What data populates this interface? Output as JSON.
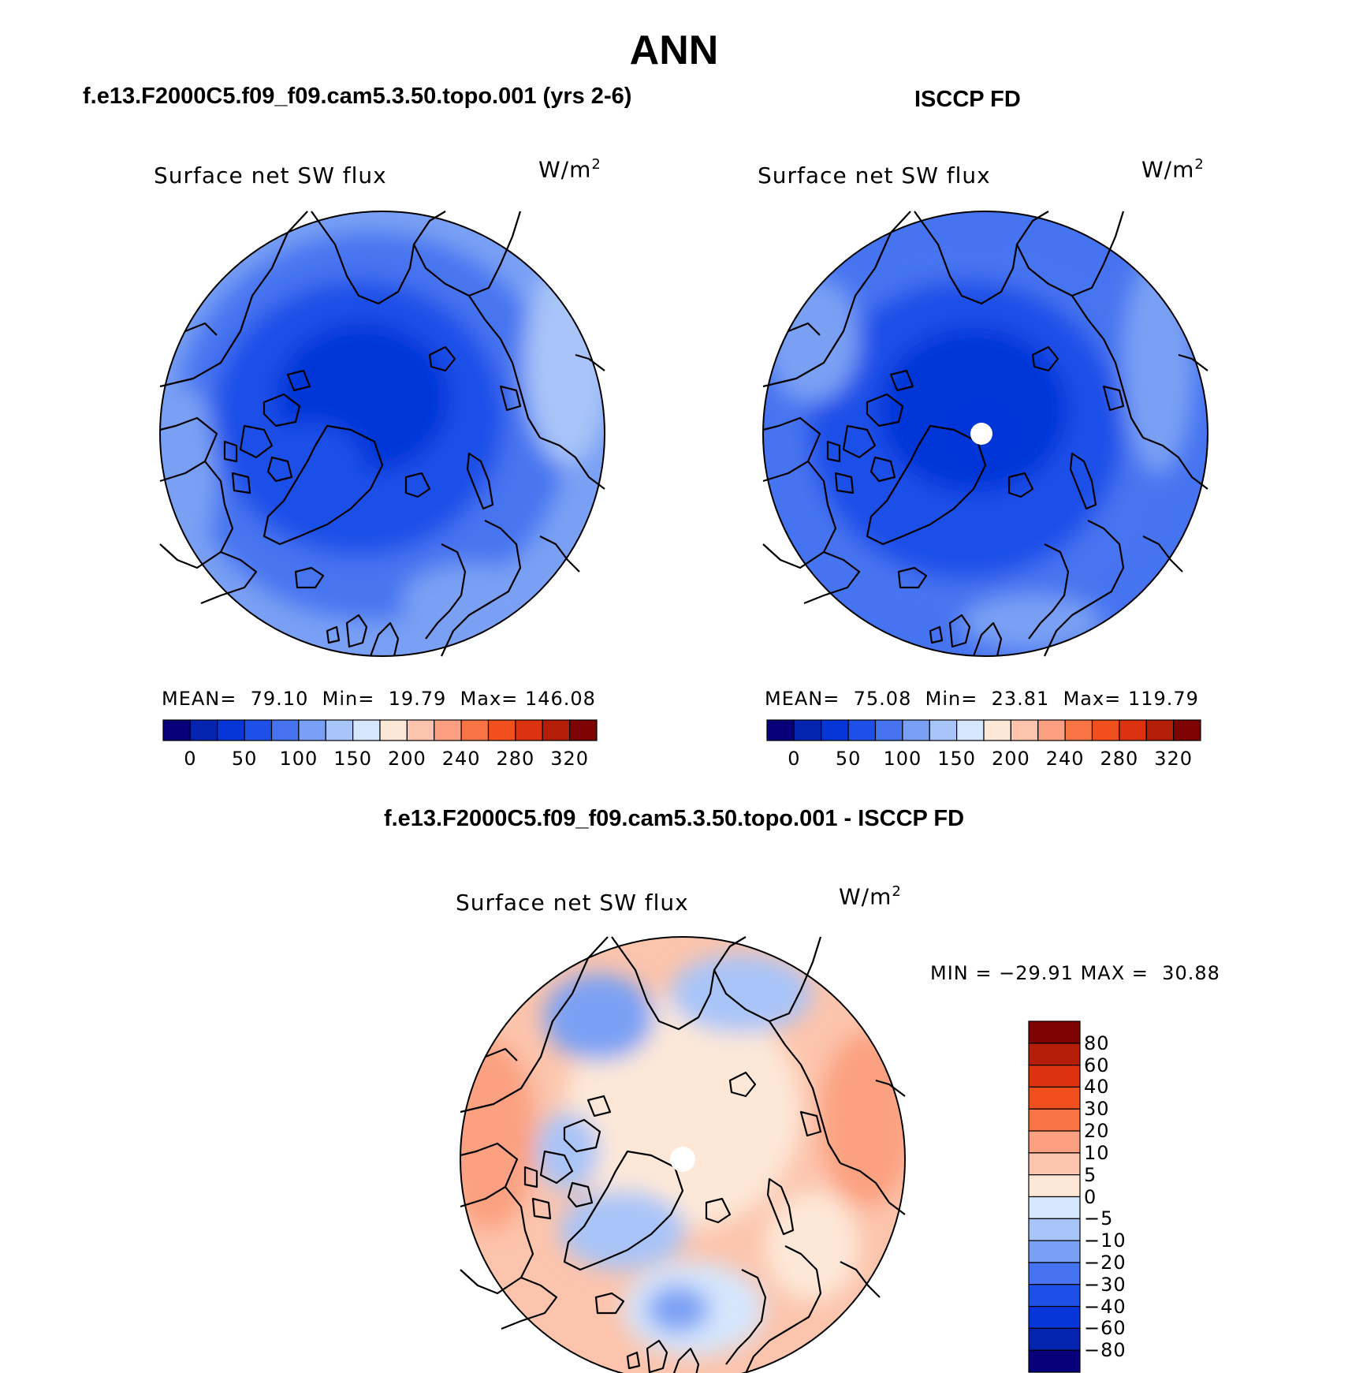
{
  "figure": {
    "title": "ANN",
    "case_title": "f.e13.F2000C5.f09_f09.cam5.3.50.topo.001 (yrs 2-6)",
    "obs_title": "ISCCP FD",
    "diff_title": "f.e13.F2000C5.f09_f09.cam5.3.50.topo.001 - ISCCP FD"
  },
  "panels": {
    "case": {
      "variable": "Surface net SW flux",
      "units": "W/m",
      "units_exp": "2",
      "mean_label": "MEAN=",
      "mean": "79.10",
      "min_label": "Min=",
      "min": "19.79",
      "max_label": "Max=",
      "max": "146.08"
    },
    "obs": {
      "variable": "Surface net SW flux",
      "units": "W/m",
      "units_exp": "2",
      "mean_label": "MEAN=",
      "mean": "75.08",
      "min_label": "Min=",
      "min": "23.81",
      "max_label": "Max=",
      "max": "119.79"
    },
    "diff": {
      "variable": "Surface net SW flux",
      "units": "W/m",
      "units_exp": "2",
      "min_label": "MIN =",
      "min": "−29.91",
      "max_label": "MAX =",
      "max": "30.88"
    }
  },
  "colorbars": {
    "field": {
      "ticks": [
        "0",
        "50",
        "100",
        "150",
        "200",
        "240",
        "280",
        "320"
      ],
      "colors": [
        "#08007a",
        "#0424b0",
        "#0636d8",
        "#1e50e8",
        "#4674f0",
        "#7aa0f4",
        "#a8c4f8",
        "#d6e6fc",
        "#fde8d8",
        "#fcc4ac",
        "#fba080",
        "#f87444",
        "#f0501e",
        "#dc3210",
        "#b41e08",
        "#7e0404"
      ]
    },
    "diff": {
      "ticks": [
        "80",
        "60",
        "40",
        "30",
        "20",
        "10",
        "5",
        "0",
        "−5",
        "−10",
        "−20",
        "−30",
        "−40",
        "−60",
        "−80"
      ],
      "colors": [
        "#7e0404",
        "#b41e08",
        "#dc3210",
        "#f0501e",
        "#f87444",
        "#fba080",
        "#fcc4ac",
        "#fde8d8",
        "#d6e6fc",
        "#a8c4f8",
        "#7aa0f4",
        "#4674f0",
        "#1e50e8",
        "#0636d8",
        "#0424b0",
        "#08007a"
      ]
    }
  }
}
